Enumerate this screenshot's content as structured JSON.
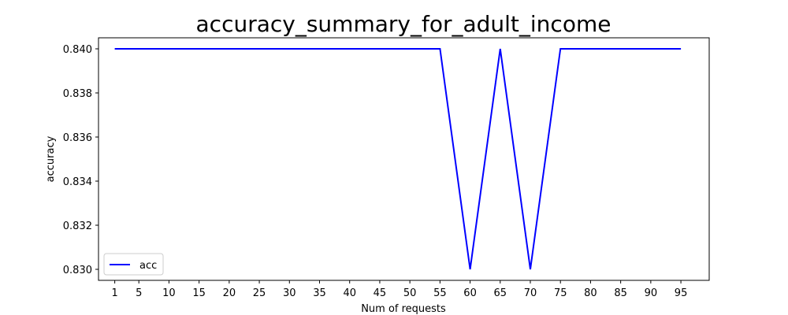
{
  "chart_data": {
    "type": "line",
    "title": "accuracy_summary_for_adult_income",
    "xlabel": "Num of requests",
    "ylabel": "accuracy",
    "x_ticks": [
      1,
      5,
      10,
      15,
      20,
      25,
      30,
      35,
      40,
      45,
      50,
      55,
      60,
      65,
      70,
      75,
      80,
      85,
      90,
      95
    ],
    "y_ticks": [
      "0.830",
      "0.832",
      "0.834",
      "0.836",
      "0.838",
      "0.840"
    ],
    "xlim": [
      -1.7,
      99.7
    ],
    "ylim": [
      0.8295,
      0.8405
    ],
    "grid": false,
    "legend_position": "lower-left",
    "series": [
      {
        "name": "acc",
        "color": "#0000ff",
        "x": [
          1,
          5,
          10,
          15,
          20,
          25,
          30,
          35,
          40,
          45,
          50,
          55,
          60,
          65,
          70,
          75,
          80,
          85,
          90,
          95
        ],
        "y": [
          0.84,
          0.84,
          0.84,
          0.84,
          0.84,
          0.84,
          0.84,
          0.84,
          0.84,
          0.84,
          0.84,
          0.84,
          0.83,
          0.84,
          0.83,
          0.84,
          0.84,
          0.84,
          0.84,
          0.84
        ]
      }
    ]
  }
}
